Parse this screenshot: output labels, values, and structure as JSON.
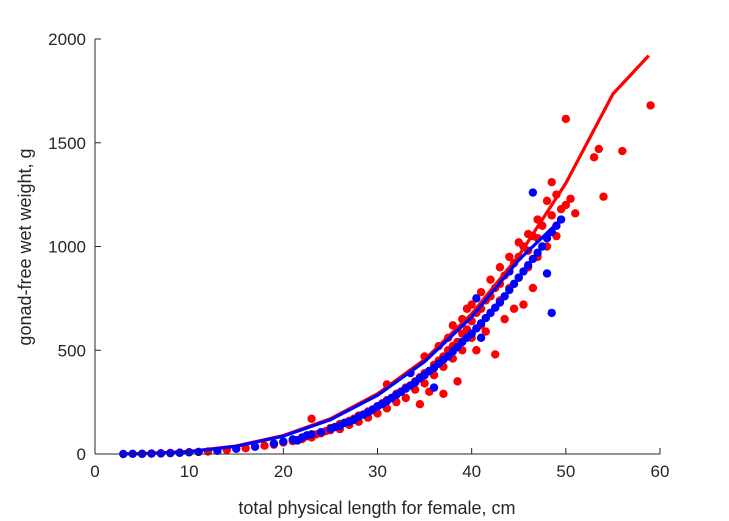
{
  "chart_data": {
    "type": "scatter",
    "title": "",
    "xlabel": "total physical length for female, cm",
    "ylabel": "gonad-free wet weight, g",
    "xlim": [
      0,
      60
    ],
    "ylim": [
      0,
      2000
    ],
    "xticks": [
      0,
      10,
      20,
      30,
      40,
      50,
      60
    ],
    "yticks": [
      0,
      500,
      1000,
      1500,
      2000
    ],
    "xtick_labels": [
      "0",
      "10",
      "20",
      "30",
      "40",
      "50",
      "60"
    ],
    "ytick_labels": [
      "0",
      "500",
      "1000",
      "1500",
      "2000"
    ],
    "grid": false,
    "legend": "none",
    "series": [
      {
        "color": "#ff0000",
        "kind": "points",
        "points": [
          [
            5,
            1
          ],
          [
            6,
            2
          ],
          [
            7,
            3
          ],
          [
            8,
            5
          ],
          [
            9,
            6
          ],
          [
            10,
            8
          ],
          [
            11,
            10
          ],
          [
            12,
            12
          ],
          [
            14,
            20
          ],
          [
            16,
            28
          ],
          [
            18,
            40
          ],
          [
            19,
            45
          ],
          [
            20,
            55
          ],
          [
            21,
            62
          ],
          [
            21.5,
            68
          ],
          [
            22,
            72
          ],
          [
            22.5,
            85
          ],
          [
            23,
            80
          ],
          [
            23,
            170
          ],
          [
            23.5,
            95
          ],
          [
            24,
            100
          ],
          [
            24.5,
            110
          ],
          [
            25,
            115
          ],
          [
            25,
            125
          ],
          [
            25.5,
            130
          ],
          [
            26,
            120
          ],
          [
            26,
            145
          ],
          [
            26.5,
            150
          ],
          [
            27,
            140
          ],
          [
            27,
            160
          ],
          [
            27.5,
            170
          ],
          [
            28,
            155
          ],
          [
            28,
            185
          ],
          [
            28.5,
            190
          ],
          [
            29,
            175
          ],
          [
            29,
            205
          ],
          [
            29.5,
            210
          ],
          [
            30,
            195
          ],
          [
            30,
            230
          ],
          [
            30.5,
            245
          ],
          [
            31,
            220
          ],
          [
            31,
            260
          ],
          [
            31,
            335
          ],
          [
            31.5,
            270
          ],
          [
            32,
            250
          ],
          [
            32,
            290
          ],
          [
            32.5,
            300
          ],
          [
            33,
            270
          ],
          [
            33,
            320
          ],
          [
            33.5,
            330
          ],
          [
            34,
            310
          ],
          [
            34,
            350
          ],
          [
            34.5,
            370
          ],
          [
            34.5,
            240
          ],
          [
            35,
            340
          ],
          [
            35,
            390
          ],
          [
            35,
            470
          ],
          [
            35.5,
            400
          ],
          [
            35.5,
            300
          ],
          [
            36,
            380
          ],
          [
            36,
            430
          ],
          [
            36.5,
            450
          ],
          [
            36.5,
            520
          ],
          [
            37,
            420
          ],
          [
            37,
            470
          ],
          [
            37,
            290
          ],
          [
            37.5,
            500
          ],
          [
            37.5,
            560
          ],
          [
            38,
            460
          ],
          [
            38,
            520
          ],
          [
            38,
            620
          ],
          [
            38.5,
            540
          ],
          [
            38.5,
            350
          ],
          [
            39,
            500
          ],
          [
            39,
            580
          ],
          [
            39,
            650
          ],
          [
            39.5,
            600
          ],
          [
            39.5,
            700
          ],
          [
            40,
            560
          ],
          [
            40,
            640
          ],
          [
            40,
            720
          ],
          [
            40.5,
            680
          ],
          [
            40.5,
            500
          ],
          [
            41,
            620
          ],
          [
            41,
            700
          ],
          [
            41,
            780
          ],
          [
            41.5,
            740
          ],
          [
            41.5,
            590
          ],
          [
            42,
            680
          ],
          [
            42,
            760
          ],
          [
            42,
            840
          ],
          [
            42.5,
            800
          ],
          [
            42.5,
            480
          ],
          [
            43,
            740
          ],
          [
            43,
            820
          ],
          [
            43,
            900
          ],
          [
            43.5,
            860
          ],
          [
            43.5,
            650
          ],
          [
            44,
            800
          ],
          [
            44,
            880
          ],
          [
            44,
            950
          ],
          [
            44.5,
            920
          ],
          [
            44.5,
            700
          ],
          [
            45,
            850
          ],
          [
            45,
            950
          ],
          [
            45,
            1020
          ],
          [
            45.5,
            1000
          ],
          [
            45.5,
            720
          ],
          [
            46,
            900
          ],
          [
            46,
            980
          ],
          [
            46,
            1060
          ],
          [
            46.5,
            1050
          ],
          [
            46.5,
            800
          ],
          [
            47,
            950
          ],
          [
            47,
            1040
          ],
          [
            47,
            1130
          ],
          [
            47.5,
            1100
          ],
          [
            48,
            1000
          ],
          [
            48,
            1220
          ],
          [
            48.5,
            1150
          ],
          [
            48.5,
            1310
          ],
          [
            49,
            1250
          ],
          [
            49,
            1050
          ],
          [
            49.5,
            1180
          ],
          [
            50,
            1200
          ],
          [
            50,
            1615
          ],
          [
            50.5,
            1230
          ],
          [
            51,
            1160
          ],
          [
            53,
            1430
          ],
          [
            53.5,
            1470
          ],
          [
            54,
            1240
          ],
          [
            56,
            1460
          ],
          [
            59,
            1680
          ]
        ]
      },
      {
        "color": "#ff0000",
        "kind": "line",
        "points": [
          [
            3,
            0.4
          ],
          [
            5,
            1.8
          ],
          [
            10,
            12
          ],
          [
            15,
            39
          ],
          [
            20,
            89
          ],
          [
            25,
            170
          ],
          [
            30,
            290
          ],
          [
            35,
            455
          ],
          [
            40,
            675
          ],
          [
            45,
            955
          ],
          [
            50,
            1305
          ],
          [
            55,
            1735
          ],
          [
            58.8,
            1920
          ]
        ]
      },
      {
        "color": "#0000ff",
        "kind": "points",
        "points": [
          [
            3,
            0
          ],
          [
            4,
            1
          ],
          [
            5,
            1
          ],
          [
            6,
            2
          ],
          [
            7,
            3
          ],
          [
            8,
            4
          ],
          [
            9,
            6
          ],
          [
            10,
            8
          ],
          [
            11,
            10
          ],
          [
            13,
            15
          ],
          [
            15,
            25
          ],
          [
            17,
            35
          ],
          [
            19,
            50
          ],
          [
            20,
            60
          ],
          [
            21,
            70
          ],
          [
            21.5,
            65
          ],
          [
            22,
            80
          ],
          [
            22.5,
            90
          ],
          [
            23,
            95
          ],
          [
            24,
            105
          ],
          [
            25,
            120
          ],
          [
            25.5,
            130
          ],
          [
            26,
            135
          ],
          [
            26.5,
            150
          ],
          [
            27,
            155
          ],
          [
            27.5,
            165
          ],
          [
            28,
            180
          ],
          [
            28.5,
            190
          ],
          [
            29,
            200
          ],
          [
            29.5,
            215
          ],
          [
            30,
            230
          ],
          [
            30.5,
            240
          ],
          [
            31,
            255
          ],
          [
            31.5,
            270
          ],
          [
            32,
            285
          ],
          [
            32.5,
            300
          ],
          [
            33,
            315
          ],
          [
            33.5,
            330
          ],
          [
            34,
            345
          ],
          [
            34.5,
            365
          ],
          [
            35,
            380
          ],
          [
            35.5,
            400
          ],
          [
            36,
            415
          ],
          [
            36.5,
            435
          ],
          [
            37,
            455
          ],
          [
            37.5,
            470
          ],
          [
            38,
            495
          ],
          [
            38.5,
            515
          ],
          [
            39,
            540
          ],
          [
            39.5,
            560
          ],
          [
            40,
            580
          ],
          [
            40.5,
            605
          ],
          [
            41,
            630
          ],
          [
            41.5,
            655
          ],
          [
            42,
            680
          ],
          [
            42.5,
            705
          ],
          [
            43,
            730
          ],
          [
            43.5,
            760
          ],
          [
            44,
            790
          ],
          [
            44.5,
            820
          ],
          [
            45,
            850
          ],
          [
            45.5,
            880
          ],
          [
            46,
            910
          ],
          [
            46.5,
            940
          ],
          [
            47,
            970
          ],
          [
            47.5,
            1000
          ],
          [
            48,
            1040
          ],
          [
            48.5,
            1070
          ],
          [
            49,
            1100
          ],
          [
            49.5,
            1130
          ],
          [
            33.5,
            390
          ],
          [
            40.5,
            750
          ],
          [
            44,
            880
          ],
          [
            46.5,
            1260
          ],
          [
            48,
            870
          ],
          [
            48.5,
            680
          ],
          [
            41,
            560
          ],
          [
            36,
            320
          ]
        ]
      },
      {
        "color": "#0000ff",
        "kind": "line",
        "points": [
          [
            3,
            0.3
          ],
          [
            5,
            1.6
          ],
          [
            10,
            11
          ],
          [
            15,
            37
          ],
          [
            20,
            86
          ],
          [
            25,
            165
          ],
          [
            30,
            283
          ],
          [
            35,
            445
          ],
          [
            40,
            660
          ],
          [
            45,
            935
          ],
          [
            49.5,
            1130
          ]
        ]
      }
    ]
  }
}
